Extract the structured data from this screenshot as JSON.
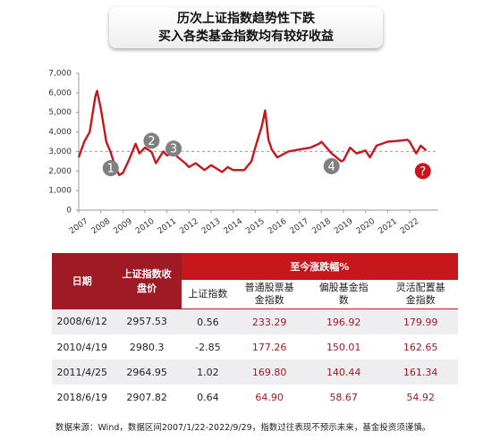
{
  "chart_data": {
    "type": "line",
    "title": [
      "历次上证指数趋势性下跌",
      "买入各类基金指数均有较好收益"
    ],
    "series": [
      {
        "name": null,
        "color": "#c8161d",
        "x": [
          2007.0,
          2007.25,
          2007.5,
          2007.75,
          2007.83,
          2008.0,
          2008.25,
          2008.45,
          2008.6,
          2008.83,
          2009.0,
          2009.25,
          2009.58,
          2009.75,
          2010.0,
          2010.3,
          2010.5,
          2010.83,
          2011.0,
          2011.3,
          2011.5,
          2011.83,
          2012.0,
          2012.3,
          2012.7,
          2013.0,
          2013.5,
          2013.75,
          2014.0,
          2014.5,
          2014.83,
          2015.0,
          2015.3,
          2015.45,
          2015.6,
          2015.75,
          2016.0,
          2016.5,
          2017.0,
          2017.5,
          2017.9,
          2018.0,
          2018.46,
          2018.9,
          2019.0,
          2019.3,
          2019.6,
          2020.0,
          2020.2,
          2020.5,
          2021.0,
          2021.5,
          2021.9,
          2022.0,
          2022.3,
          2022.5,
          2022.75
        ],
        "values": [
          2700,
          3500,
          4000,
          5800,
          6100,
          5200,
          3500,
          2950,
          2400,
          1800,
          1900,
          2500,
          3400,
          2900,
          3200,
          2980,
          2400,
          3000,
          2800,
          2960,
          2700,
          2400,
          2200,
          2400,
          2050,
          2300,
          1950,
          2200,
          2050,
          2050,
          2500,
          3200,
          4300,
          5100,
          3600,
          3100,
          2700,
          3000,
          3100,
          3200,
          3400,
          3500,
          2908,
          2500,
          2550,
          3200,
          2900,
          3050,
          2700,
          3300,
          3500,
          3550,
          3600,
          3500,
          2900,
          3300,
          3050
        ]
      }
    ],
    "xlim": [
      2007,
      2023.3
    ],
    "xticks": [
      2007,
      2008,
      2009,
      2010,
      2011,
      2012,
      2013,
      2014,
      2015,
      2016,
      2017,
      2018,
      2019,
      2020,
      2021,
      2022
    ],
    "ylim": [
      0,
      7000
    ],
    "yticks": [
      0,
      {
        "value": 1000,
        "label": "1,000"
      },
      {
        "value": 2000,
        "label": "2,000"
      },
      {
        "value": 3000,
        "label": "3,000"
      },
      {
        "value": 4000,
        "label": "4,000"
      },
      {
        "value": 5000,
        "label": "5,000"
      },
      {
        "value": 6000,
        "label": "6,000"
      },
      {
        "value": 7000,
        "label": "7,000"
      }
    ],
    "reference_line": 3000,
    "annotations": [
      {
        "label": "1",
        "x": 2008.45,
        "y": 2150,
        "color": "#808080"
      },
      {
        "label": "2",
        "x": 2010.3,
        "y": 3550,
        "color": "#808080"
      },
      {
        "label": "3",
        "x": 2011.3,
        "y": 3150,
        "color": "#808080"
      },
      {
        "label": "4",
        "x": 2018.46,
        "y": 2250,
        "color": "#808080"
      },
      {
        "label": "?",
        "x": 2022.6,
        "y": 2000,
        "color": "#c8161d"
      }
    ]
  },
  "table": {
    "headers": [
      "日期",
      "上证指数收盘价",
      "至今涨跌幅%"
    ],
    "subheaders": [
      "上证指数",
      "普通股票基金指数",
      "偏股基金指数",
      "灵活配置基金指数"
    ],
    "rows": [
      [
        "2008/6/12",
        "2957.53",
        "0.56",
        "233.29",
        "196.92",
        "179.99"
      ],
      [
        "2010/4/19",
        "2980.3",
        "-2.85",
        "177.26",
        "150.01",
        "162.65"
      ],
      [
        "2011/4/25",
        "2964.95",
        "1.02",
        "169.80",
        "140.44",
        "161.34"
      ],
      [
        "2018/6/19",
        "2907.82",
        "0.64",
        "64.90",
        "58.67",
        "54.92"
      ]
    ]
  },
  "note": "数据来源：Wind，数据区间2007/1/22-2022/9/29，指数过往表现不预示未来，基金投资须谨慎。"
}
